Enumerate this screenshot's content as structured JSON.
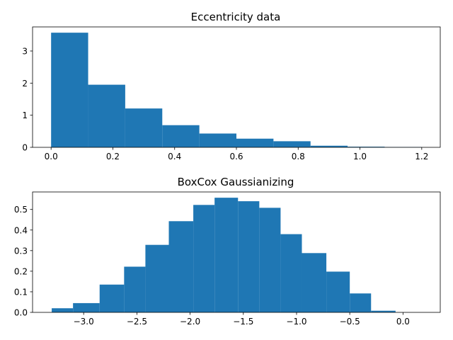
{
  "chart_data": [
    {
      "type": "bar",
      "title": "Eccentricity data",
      "xlabel": "",
      "ylabel": "",
      "color": "#1f77b4",
      "xlim": [
        -0.06,
        1.26
      ],
      "ylim": [
        0,
        3.75
      ],
      "xticks": [
        0.0,
        0.2,
        0.4,
        0.6,
        0.8,
        1.0,
        1.2
      ],
      "xtick_labels": [
        "0.0",
        "0.2",
        "0.4",
        "0.6",
        "0.8",
        "1.0",
        "1.2"
      ],
      "yticks": [
        0,
        1,
        2,
        3
      ],
      "ytick_labels": [
        "0",
        "1",
        "2",
        "3"
      ],
      "bin_edges": [
        0.0,
        0.12,
        0.24,
        0.36,
        0.48,
        0.6,
        0.72,
        0.84,
        0.96,
        1.08,
        1.2
      ],
      "values": [
        3.57,
        1.95,
        1.21,
        0.69,
        0.43,
        0.27,
        0.19,
        0.05,
        0.02,
        0.01
      ],
      "grid": false
    },
    {
      "type": "bar",
      "title": "BoxCox Gaussianizing",
      "xlabel": "",
      "ylabel": "",
      "color": "#1f77b4",
      "xlim": [
        -3.48,
        0.35
      ],
      "ylim": [
        0,
        0.585
      ],
      "xticks": [
        -3.0,
        -2.5,
        -2.0,
        -1.5,
        -1.0,
        -0.5,
        0.0
      ],
      "xtick_labels": [
        "−3.0",
        "−2.5",
        "−2.0",
        "−1.5",
        "−1.0",
        "−0.5",
        "0.0"
      ],
      "yticks": [
        0.0,
        0.1,
        0.2,
        0.3,
        0.4,
        0.5
      ],
      "ytick_labels": [
        "0.0",
        "0.1",
        "0.2",
        "0.3",
        "0.4",
        "0.5"
      ],
      "bin_edges": [
        -3.3,
        -3.1,
        -2.85,
        -2.62,
        -2.42,
        -2.2,
        -1.97,
        -1.77,
        -1.55,
        -1.35,
        -1.15,
        -0.95,
        -0.72,
        -0.5,
        -0.3,
        -0.07,
        0.17
      ],
      "values": [
        0.02,
        0.045,
        0.135,
        0.222,
        0.328,
        0.443,
        0.522,
        0.557,
        0.54,
        0.508,
        0.38,
        0.288,
        0.198,
        0.092,
        0.008,
        0.0
      ],
      "grid": false
    }
  ]
}
